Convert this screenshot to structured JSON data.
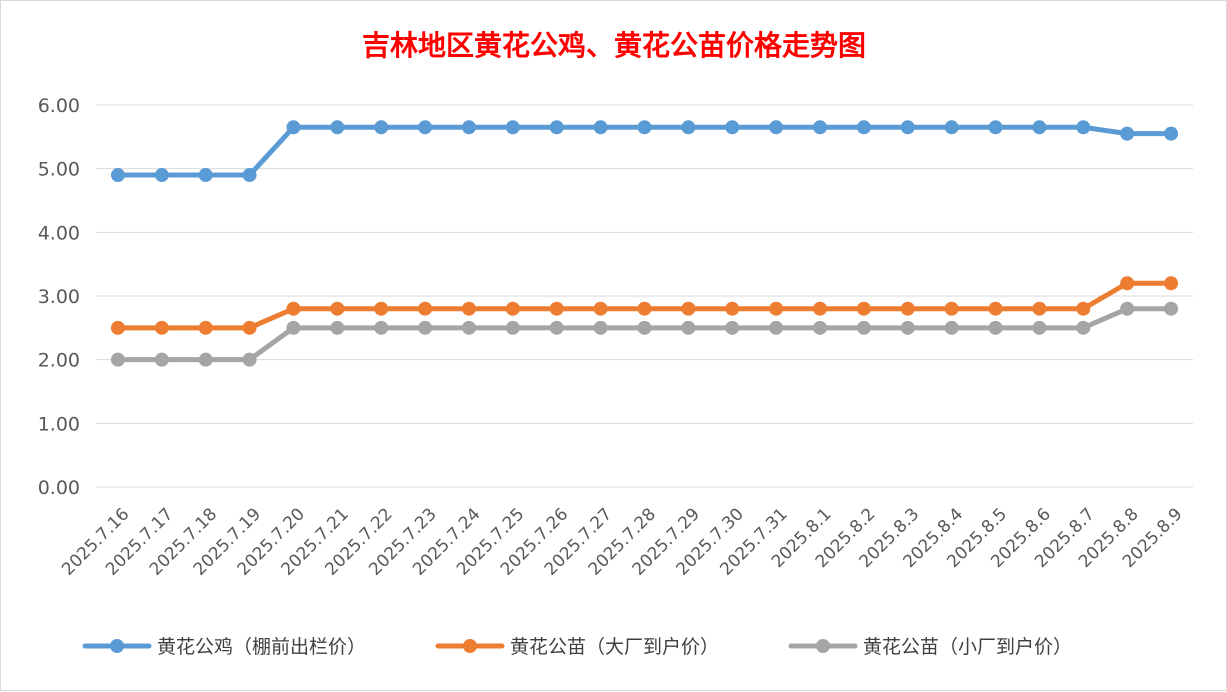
{
  "chart_data": {
    "type": "line",
    "title": "吉林地区黄花公鸡、黄花公苗价格走势图",
    "xlabel": "",
    "ylabel": "",
    "ylim": [
      0,
      6
    ],
    "y_ticks": [
      "0.00",
      "1.00",
      "2.00",
      "3.00",
      "4.00",
      "5.00",
      "6.00"
    ],
    "grid": true,
    "legend_position": "bottom",
    "categories": [
      "2025.7.16",
      "2025.7.17",
      "2025.7.18",
      "2025.7.19",
      "2025.7.20",
      "2025.7.21",
      "2025.7.22",
      "2025.7.23",
      "2025.7.24",
      "2025.7.25",
      "2025.7.26",
      "2025.7.27",
      "2025.7.28",
      "2025.7.29",
      "2025.7.30",
      "2025.7.31",
      "2025.8.1",
      "2025.8.2",
      "2025.8.3",
      "2025.8.4",
      "2025.8.5",
      "2025.8.6",
      "2025.8.7",
      "2025.8.8",
      "2025.8.9"
    ],
    "series": [
      {
        "name": "黄花公鸡（棚前出栏价）",
        "color": "#5b9bd5",
        "values": [
          4.9,
          4.9,
          4.9,
          4.9,
          5.65,
          5.65,
          5.65,
          5.65,
          5.65,
          5.65,
          5.65,
          5.65,
          5.65,
          5.65,
          5.65,
          5.65,
          5.65,
          5.65,
          5.65,
          5.65,
          5.65,
          5.65,
          5.65,
          5.55,
          5.55
        ]
      },
      {
        "name": "黄花公苗（大厂到户价）",
        "color": "#ed7d31",
        "values": [
          2.5,
          2.5,
          2.5,
          2.5,
          2.8,
          2.8,
          2.8,
          2.8,
          2.8,
          2.8,
          2.8,
          2.8,
          2.8,
          2.8,
          2.8,
          2.8,
          2.8,
          2.8,
          2.8,
          2.8,
          2.8,
          2.8,
          2.8,
          3.2,
          3.2
        ]
      },
      {
        "name": "黄花公苗（小厂到户价）",
        "color": "#a5a5a5",
        "values": [
          2.0,
          2.0,
          2.0,
          2.0,
          2.5,
          2.5,
          2.5,
          2.5,
          2.5,
          2.5,
          2.5,
          2.5,
          2.5,
          2.5,
          2.5,
          2.5,
          2.5,
          2.5,
          2.5,
          2.5,
          2.5,
          2.5,
          2.5,
          2.8,
          2.8
        ]
      }
    ]
  }
}
